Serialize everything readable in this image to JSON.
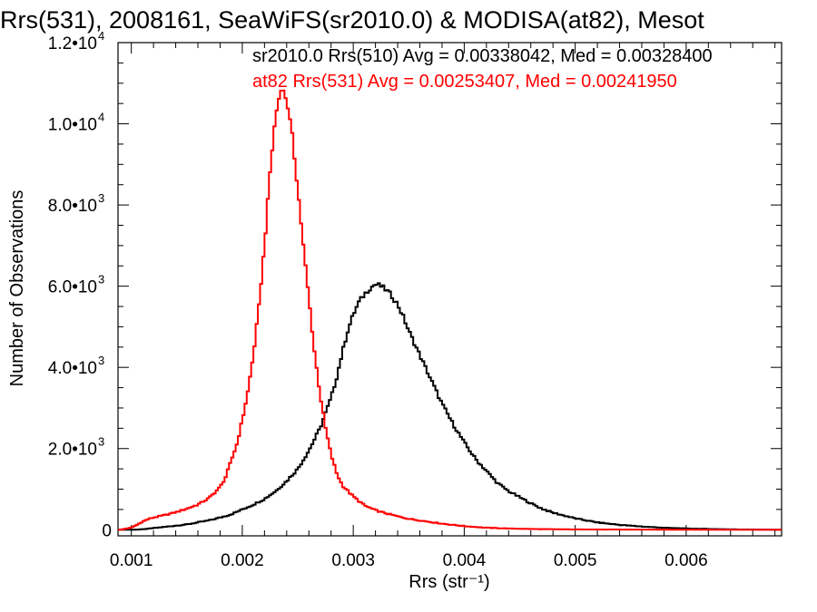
{
  "chart_data": {
    "type": "histogram",
    "title": "Rrs(531), 2008161, SeaWiFS(sr2010.0) & MODISA(at82), Mesot",
    "xlabel": "Rrs (str⁻¹)",
    "ylabel": "Number of Observations",
    "xlim": [
      0.00088,
      0.00686
    ],
    "ylim": [
      -150,
      12000
    ],
    "xticks": [
      {
        "value": 0.001,
        "label": "0.001"
      },
      {
        "value": 0.002,
        "label": "0.002"
      },
      {
        "value": 0.003,
        "label": "0.003"
      },
      {
        "value": 0.004,
        "label": "0.004"
      },
      {
        "value": 0.005,
        "label": "0.005"
      },
      {
        "value": 0.006,
        "label": "0.006"
      }
    ],
    "yticks": [
      {
        "value": 0,
        "label": "0",
        "exp": ""
      },
      {
        "value": 2000,
        "label": "2.0•10",
        "exp": "3"
      },
      {
        "value": 4000,
        "label": "4.0•10",
        "exp": "3"
      },
      {
        "value": 6000,
        "label": "6.0•10",
        "exp": "3"
      },
      {
        "value": 8000,
        "label": "8.0•10",
        "exp": "3"
      },
      {
        "value": 10000,
        "label": "1.0•10",
        "exp": "4"
      },
      {
        "value": 12000,
        "label": "1.2•10",
        "exp": "4"
      }
    ],
    "grid": false,
    "annotations": [
      {
        "text": "sr2010.0 Rrs(510) Avg = 0.00338042, Med = 0.00328400",
        "color": "#000000"
      },
      {
        "text": "at82 Rrs(531) Avg = 0.00253407, Med = 0.00241950",
        "color": "#ff0000"
      }
    ],
    "series": [
      {
        "color": "#000000",
        "x": [
          0.0009,
          0.001,
          0.0011,
          0.0012,
          0.0013,
          0.0014,
          0.0015,
          0.0016,
          0.0017,
          0.0018,
          0.0019,
          0.002,
          0.0021,
          0.0022,
          0.0023,
          0.0024,
          0.0025,
          0.0026,
          0.0027,
          0.0028,
          0.00285,
          0.0029,
          0.00295,
          0.003,
          0.00305,
          0.0031,
          0.00315,
          0.0032,
          0.00325,
          0.0033,
          0.00335,
          0.0034,
          0.00345,
          0.0035,
          0.0036,
          0.0037,
          0.0038,
          0.0039,
          0.004,
          0.0041,
          0.0042,
          0.0043,
          0.0044,
          0.0045,
          0.0046,
          0.0047,
          0.0048,
          0.005,
          0.0052,
          0.0054,
          0.0056,
          0.0058,
          0.006,
          0.0062,
          0.0064,
          0.0066,
          0.00686
        ],
        "values": [
          0,
          0,
          10,
          40,
          70,
          100,
          130,
          180,
          230,
          300,
          380,
          500,
          620,
          760,
          950,
          1200,
          1500,
          1950,
          2500,
          3250,
          3750,
          4350,
          4900,
          5300,
          5600,
          5800,
          5950,
          6050,
          6000,
          5900,
          5750,
          5550,
          5250,
          4900,
          4300,
          3700,
          3100,
          2600,
          2150,
          1750,
          1450,
          1150,
          950,
          800,
          650,
          520,
          420,
          280,
          180,
          120,
          80,
          50,
          30,
          20,
          10,
          5,
          0
        ]
      },
      {
        "color": "#ff0000",
        "x": [
          0.0009,
          0.001,
          0.00105,
          0.0011,
          0.00115,
          0.0012,
          0.0013,
          0.0014,
          0.0015,
          0.0016,
          0.0017,
          0.0018,
          0.00185,
          0.0019,
          0.00195,
          0.002,
          0.00205,
          0.0021,
          0.00215,
          0.0022,
          0.00225,
          0.0023,
          0.00235,
          0.0024,
          0.00245,
          0.0025,
          0.00255,
          0.0026,
          0.00265,
          0.0027,
          0.00275,
          0.0028,
          0.00285,
          0.0029,
          0.003,
          0.0031,
          0.0032,
          0.0033,
          0.0034,
          0.0035,
          0.0036,
          0.0037,
          0.0038,
          0.004,
          0.0042,
          0.0044,
          0.0046,
          0.0048,
          0.005,
          0.0055,
          0.006,
          0.00686
        ],
        "values": [
          0,
          50,
          120,
          200,
          260,
          300,
          360,
          430,
          520,
          620,
          780,
          1050,
          1300,
          1700,
          2100,
          2700,
          3400,
          4300,
          5500,
          7000,
          8800,
          10200,
          10900,
          10600,
          9700,
          8400,
          7000,
          5700,
          4400,
          3350,
          2500,
          1850,
          1400,
          1100,
          820,
          600,
          480,
          400,
          330,
          270,
          230,
          190,
          150,
          90,
          50,
          30,
          20,
          12,
          8,
          4,
          2,
          0
        ]
      }
    ]
  }
}
